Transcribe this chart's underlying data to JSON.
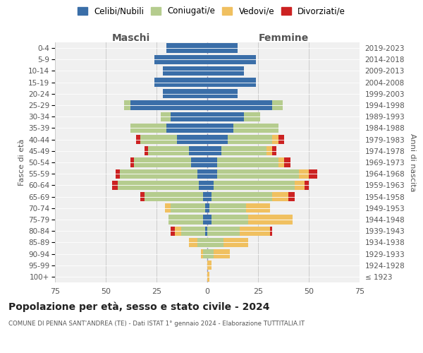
{
  "age_groups": [
    "100+",
    "95-99",
    "90-94",
    "85-89",
    "80-84",
    "75-79",
    "70-74",
    "65-69",
    "60-64",
    "55-59",
    "50-54",
    "45-49",
    "40-44",
    "35-39",
    "30-34",
    "25-29",
    "20-24",
    "15-19",
    "10-14",
    "5-9",
    "0-4"
  ],
  "birth_years": [
    "≤ 1923",
    "1924-1928",
    "1929-1933",
    "1934-1938",
    "1939-1943",
    "1944-1948",
    "1949-1953",
    "1954-1958",
    "1959-1963",
    "1964-1968",
    "1969-1973",
    "1974-1978",
    "1979-1983",
    "1984-1988",
    "1989-1993",
    "1994-1998",
    "1999-2003",
    "2004-2008",
    "2009-2013",
    "2014-2018",
    "2019-2023"
  ],
  "male_celibi": [
    0,
    0,
    0,
    0,
    1,
    2,
    1,
    2,
    4,
    5,
    8,
    9,
    15,
    20,
    18,
    38,
    22,
    26,
    22,
    26,
    20
  ],
  "male_coniugati": [
    0,
    0,
    2,
    5,
    12,
    17,
    17,
    29,
    40,
    38,
    28,
    20,
    18,
    18,
    5,
    3,
    0,
    0,
    0,
    0,
    0
  ],
  "male_vedovi": [
    0,
    0,
    1,
    4,
    3,
    0,
    3,
    0,
    0,
    0,
    0,
    0,
    0,
    0,
    0,
    0,
    0,
    0,
    0,
    0,
    0
  ],
  "male_divorziati": [
    0,
    0,
    0,
    0,
    2,
    0,
    0,
    2,
    3,
    2,
    2,
    2,
    2,
    0,
    0,
    0,
    0,
    0,
    0,
    0,
    0
  ],
  "female_celibi": [
    0,
    0,
    0,
    0,
    0,
    2,
    1,
    2,
    3,
    5,
    5,
    7,
    10,
    13,
    18,
    32,
    15,
    24,
    18,
    24,
    15
  ],
  "female_coniugati": [
    0,
    0,
    3,
    8,
    16,
    18,
    18,
    30,
    40,
    40,
    30,
    22,
    22,
    22,
    8,
    5,
    0,
    0,
    0,
    0,
    0
  ],
  "female_vedovi": [
    1,
    2,
    8,
    12,
    15,
    22,
    12,
    8,
    5,
    5,
    3,
    3,
    3,
    0,
    0,
    0,
    0,
    0,
    0,
    0,
    0
  ],
  "female_divorziati": [
    0,
    0,
    0,
    0,
    1,
    0,
    0,
    3,
    2,
    4,
    3,
    2,
    3,
    0,
    0,
    0,
    0,
    0,
    0,
    0,
    0
  ],
  "color_celibi": "#3a6ea8",
  "color_coniugati": "#b5cc8e",
  "color_vedovi": "#f0c060",
  "color_divorziati": "#cc2222",
  "title_main": "Popolazione per età, sesso e stato civile - 2024",
  "title_sub": "COMUNE DI PENNA SANT'ANDREA (TE) - Dati ISTAT 1° gennaio 2024 - Elaborazione TUTTITALIA.IT",
  "xlabel_left": "Maschi",
  "xlabel_right": "Femmine",
  "ylabel_left": "Fasce di età",
  "ylabel_right": "Anni di nascita",
  "xlim": 75,
  "bg_color": "#f0f0f0",
  "grid_color": "#cccccc"
}
